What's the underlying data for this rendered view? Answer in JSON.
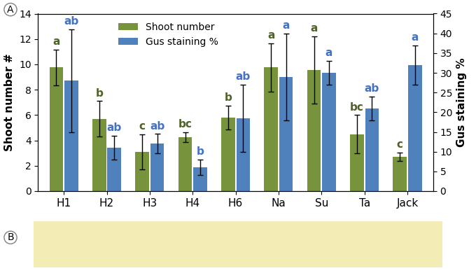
{
  "chart_data": {
    "type": "bar",
    "panel_labels": [
      "A",
      "B"
    ],
    "categories": [
      "H1",
      "H2",
      "H3",
      "H4",
      "H6",
      "Na",
      "Su",
      "Ta",
      "Jack"
    ],
    "ylabel": "Shoot number #",
    "y2label": "Gus staining %",
    "ylim": [
      0,
      14
    ],
    "yticks": [
      0,
      2,
      4,
      6,
      8,
      10,
      12,
      14
    ],
    "y2lim": [
      0,
      45
    ],
    "y2ticks": [
      0,
      5,
      10,
      15,
      20,
      25,
      30,
      35,
      40,
      45
    ],
    "legend": "upper center",
    "series": [
      {
        "name": "Shoot number",
        "color": "#77933c",
        "axis": "y",
        "values": [
          9.75,
          5.7,
          3.1,
          4.25,
          5.8,
          9.75,
          9.55,
          4.5,
          2.7
        ],
        "errors": [
          1.4,
          1.4,
          1.4,
          0.4,
          0.95,
          1.9,
          2.65,
          1.5,
          0.35
        ],
        "letters": [
          "a",
          "b",
          "c",
          "bc",
          "b",
          "a",
          "a",
          "bc",
          "c"
        ]
      },
      {
        "name": "Gus staining %",
        "color": "#4f81bd",
        "axis": "y2",
        "values": [
          28,
          11,
          12,
          6,
          18.5,
          29,
          30,
          21,
          32
        ],
        "errors": [
          13,
          3,
          2.5,
          2,
          8.5,
          11,
          3,
          3,
          5
        ],
        "letters": [
          "ab",
          "ab",
          "ab",
          "b",
          "ab",
          "a",
          "a",
          "ab",
          "a"
        ]
      }
    ]
  }
}
